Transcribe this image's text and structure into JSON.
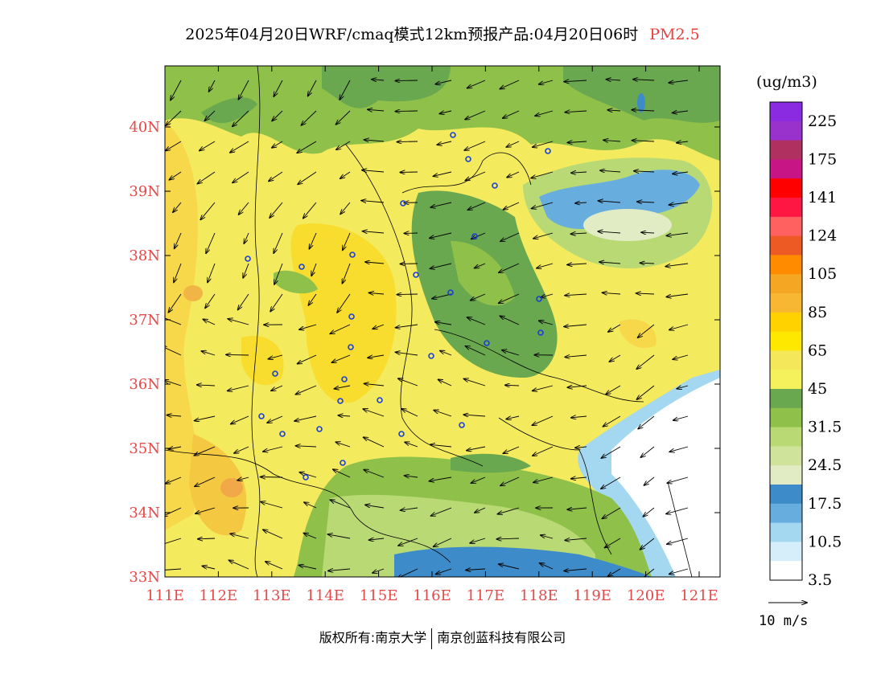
{
  "title": {
    "main": "2025年04月20日WRF/cmaq模式12km预报产品:04月20日06时",
    "pollutant": "PM2.5",
    "pollutant_color": "#e8413f"
  },
  "map": {
    "lat_labels": [
      "33N",
      "34N",
      "35N",
      "36N",
      "37N",
      "38N",
      "39N",
      "40N"
    ],
    "lon_labels": [
      "111E",
      "112E",
      "113E",
      "114E",
      "115E",
      "116E",
      "117E",
      "118E",
      "119E",
      "120E",
      "121E"
    ],
    "label_color": "#e34a4a"
  },
  "colorbar": {
    "unit": "(ug/m3)",
    "labels": [
      "225",
      "175",
      "141",
      "124",
      "105",
      "85",
      "65",
      "45",
      "31.5",
      "24.5",
      "17.5",
      "10.5",
      "3.5"
    ],
    "colors": [
      "#8a2be2",
      "#9932cc",
      "#b03060",
      "#c71585",
      "#ff0000",
      "#ff1744",
      "#ff6161",
      "#ee5a24",
      "#ff8c00",
      "#f5a623",
      "#f7b733",
      "#ffd200",
      "#ffe800",
      "#f4e85a",
      "#f4f15c",
      "#6aa84f",
      "#8fc04a",
      "#b9d974",
      "#cfe39b",
      "#e2ecc4",
      "#3d8cc9",
      "#67aedf",
      "#a4d8f0",
      "#d6eef9",
      "#ffffff"
    ]
  },
  "wind_scale": {
    "label": "10 m/s"
  },
  "copyright": {
    "prefix": "版权所有:",
    "org1": "南京大学",
    "org2": "南京创蓝科技有限公司"
  },
  "chart_data": {
    "type": "heatmap",
    "title": "2025年04月20日WRF/cmaq模式12km预报产品:04月20日06时 PM2.5",
    "xlabel": "",
    "ylabel": "",
    "x_range": [
      111,
      121.4
    ],
    "y_range": [
      33,
      41
    ],
    "x_ticks": [
      "111E",
      "112E",
      "113E",
      "114E",
      "115E",
      "116E",
      "117E",
      "118E",
      "119E",
      "120E",
      "121E"
    ],
    "y_ticks": [
      "33N",
      "34N",
      "35N",
      "36N",
      "37N",
      "38N",
      "39N",
      "40N"
    ],
    "unit": "(ug/m3)",
    "color_levels": [
      3.5,
      10.5,
      17.5,
      24.5,
      31.5,
      45,
      65,
      85,
      105,
      124,
      141,
      175,
      225
    ],
    "wind_reference": "10 m/s"
  }
}
